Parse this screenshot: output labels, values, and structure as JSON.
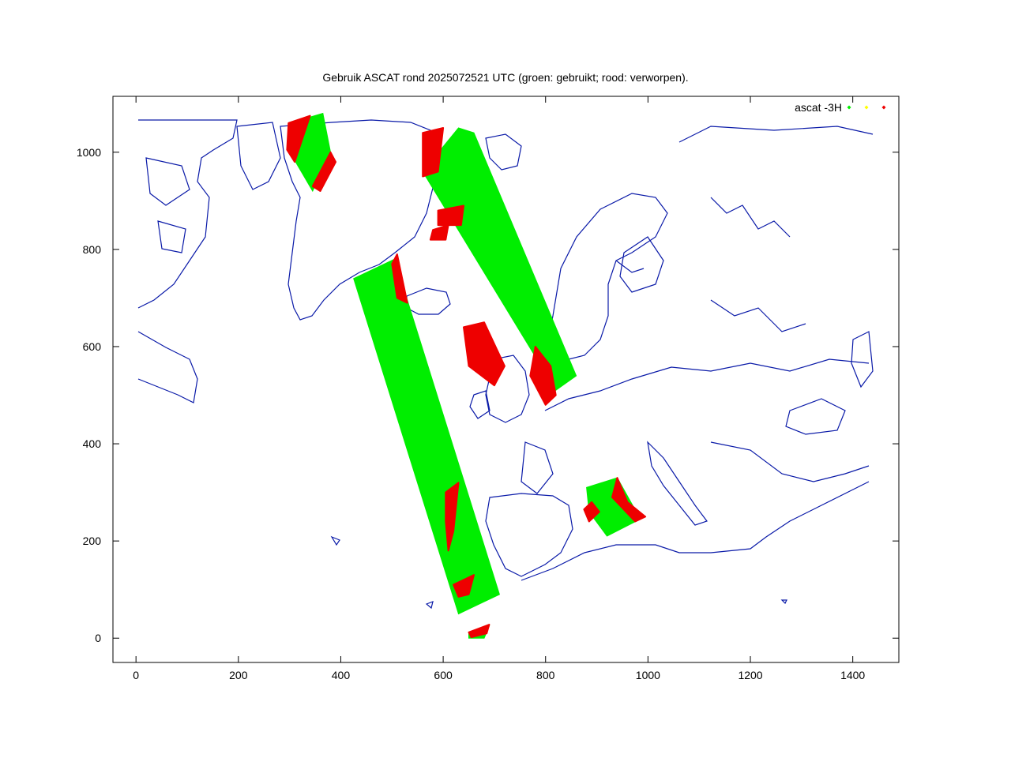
{
  "chart_data": {
    "type": "scatter",
    "title": "Gebruik ASCAT rond 2025072521 UTC (groen: gebruikt; rood: verworpen).",
    "xlabel": "",
    "ylabel": "",
    "xlim": [
      -45,
      1490
    ],
    "ylim": [
      -50,
      1115
    ],
    "x_ticks": [
      0,
      200,
      400,
      600,
      800,
      1000,
      1200,
      1400
    ],
    "y_ticks": [
      0,
      200,
      400,
      600,
      800,
      1000
    ],
    "grid": false,
    "legend": {
      "placement": "top-right",
      "label": "ascat -3H",
      "colors": [
        "#00ee00",
        "#ffff00",
        "#ee0000"
      ]
    },
    "colors": {
      "used": "#00ee00",
      "rejected": "#ee0000",
      "coast": "#0a1aa8"
    },
    "series": [
      {
        "name": "ascat -3H",
        "swaths": [
          {
            "polygon": [
              [
                300,
                1060
              ],
              [
                365,
                1080
              ],
              [
                380,
                1000
              ],
              [
                345,
                920
              ],
              [
                295,
                1010
              ]
            ],
            "status": "used"
          },
          {
            "polygon": [
              [
                425,
                740
              ],
              [
                505,
                780
              ],
              [
                710,
                90
              ],
              [
                630,
                50
              ]
            ],
            "status": "used"
          },
          {
            "polygon": [
              [
                630,
                1050
              ],
              [
                660,
                1040
              ],
              [
                860,
                540
              ],
              [
                820,
                510
              ],
              [
                560,
                960
              ]
            ],
            "status": "used"
          },
          {
            "polygon": [
              [
                880,
                310
              ],
              [
                940,
                330
              ],
              [
                985,
                245
              ],
              [
                920,
                210
              ],
              [
                885,
                260
              ]
            ],
            "status": "used"
          },
          {
            "polygon": [
              [
                650,
                10
              ],
              [
                690,
                25
              ],
              [
                680,
                0
              ],
              [
                650,
                0
              ]
            ],
            "status": "used"
          }
        ],
        "rejected_regions": [
          {
            "polygon": [
              [
                298,
                1060
              ],
              [
                340,
                1075
              ],
              [
                310,
                980
              ],
              [
                295,
                1005
              ]
            ]
          },
          {
            "polygon": [
              [
                345,
                930
              ],
              [
                380,
                1000
              ],
              [
                390,
                980
              ],
              [
                360,
                920
              ]
            ]
          },
          {
            "polygon": [
              [
                500,
                770
              ],
              [
                510,
                790
              ],
              [
                530,
                690
              ],
              [
                510,
                700
              ]
            ]
          },
          {
            "polygon": [
              [
                605,
                300
              ],
              [
                630,
                320
              ],
              [
                620,
                220
              ],
              [
                610,
                180
              ],
              [
                605,
                240
              ]
            ]
          },
          {
            "polygon": [
              [
                620,
                110
              ],
              [
                660,
                130
              ],
              [
                650,
                90
              ],
              [
                630,
                85
              ]
            ]
          },
          {
            "polygon": [
              [
                560,
                1040
              ],
              [
                600,
                1050
              ],
              [
                590,
                960
              ],
              [
                560,
                950
              ]
            ]
          },
          {
            "polygon": [
              [
                590,
                880
              ],
              [
                640,
                890
              ],
              [
                635,
                850
              ],
              [
                590,
                850
              ]
            ]
          },
          {
            "polygon": [
              [
                580,
                840
              ],
              [
                610,
                850
              ],
              [
                605,
                820
              ],
              [
                575,
                820
              ]
            ]
          },
          {
            "polygon": [
              [
                640,
                640
              ],
              [
                680,
                650
              ],
              [
                720,
                560
              ],
              [
                700,
                520
              ],
              [
                650,
                560
              ]
            ]
          },
          {
            "polygon": [
              [
                780,
                600
              ],
              [
                810,
                560
              ],
              [
                820,
                500
              ],
              [
                800,
                480
              ],
              [
                770,
                540
              ]
            ]
          },
          {
            "polygon": [
              [
                890,
                280
              ],
              [
                905,
                260
              ],
              [
                885,
                240
              ],
              [
                875,
                265
              ]
            ]
          },
          {
            "polygon": [
              [
                940,
                330
              ],
              [
                960,
                280
              ],
              [
                995,
                250
              ],
              [
                975,
                240
              ],
              [
                930,
                290
              ]
            ]
          },
          {
            "polygon": [
              [
                650,
                12
              ],
              [
                690,
                28
              ],
              [
                685,
                10
              ],
              [
                655,
                2
              ]
            ]
          }
        ]
      }
    ]
  }
}
